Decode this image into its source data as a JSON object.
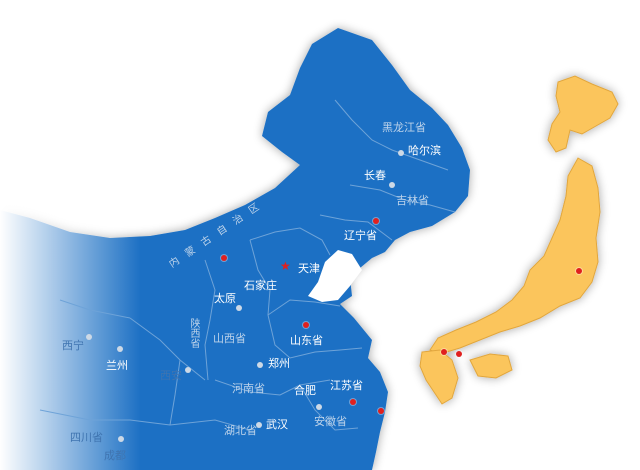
{
  "colors": {
    "china": "#1b6fc4",
    "china_fade": "#ffffff",
    "japan": "#fbc55c",
    "japan_stroke": "#e1a63e",
    "border": "#6ea3d8",
    "marker_red": "#e0201f",
    "marker_grey": "#cdd9e6"
  },
  "labels": {
    "heilongjiang": "黑龙江省",
    "harbin": "哈尔滨",
    "changchun": "长春",
    "jilin": "吉林省",
    "liaoning": "辽宁省",
    "inner_mongolia": "内 蒙 古 自 治 区",
    "tianjin": "天津",
    "shijiazhuang": "石家庄",
    "taiyuan": "太原",
    "shanxi": "山西省",
    "shandong": "山东省",
    "zhengzhou": "郑州",
    "henan": "河南省",
    "hefei": "合肥",
    "jiangsu": "江苏省",
    "anhui": "安徽省",
    "hubei": "湖北省",
    "wuhan": "武汉",
    "xining": "西宁",
    "lanzhou": "兰州",
    "xian": "西安",
    "sichuan": "四川省",
    "chengdu": "成都",
    "shaanxi_vertical": "陕西省"
  },
  "markers": {
    "red": [
      "hohhot",
      "liaoning",
      "beijing",
      "shandong",
      "jiangsu",
      "shanghai",
      "japan-tokyo",
      "japan-kyushu",
      "japan-chugoku"
    ],
    "grey": [
      "harbin",
      "changchun",
      "jilin",
      "shijiazhuang",
      "taiyuan",
      "zhengzhou",
      "hefei",
      "xining",
      "lanzhou",
      "xian",
      "wuhan",
      "chengdu",
      "anhui"
    ]
  },
  "icons": {
    "capital": "star-icon"
  }
}
